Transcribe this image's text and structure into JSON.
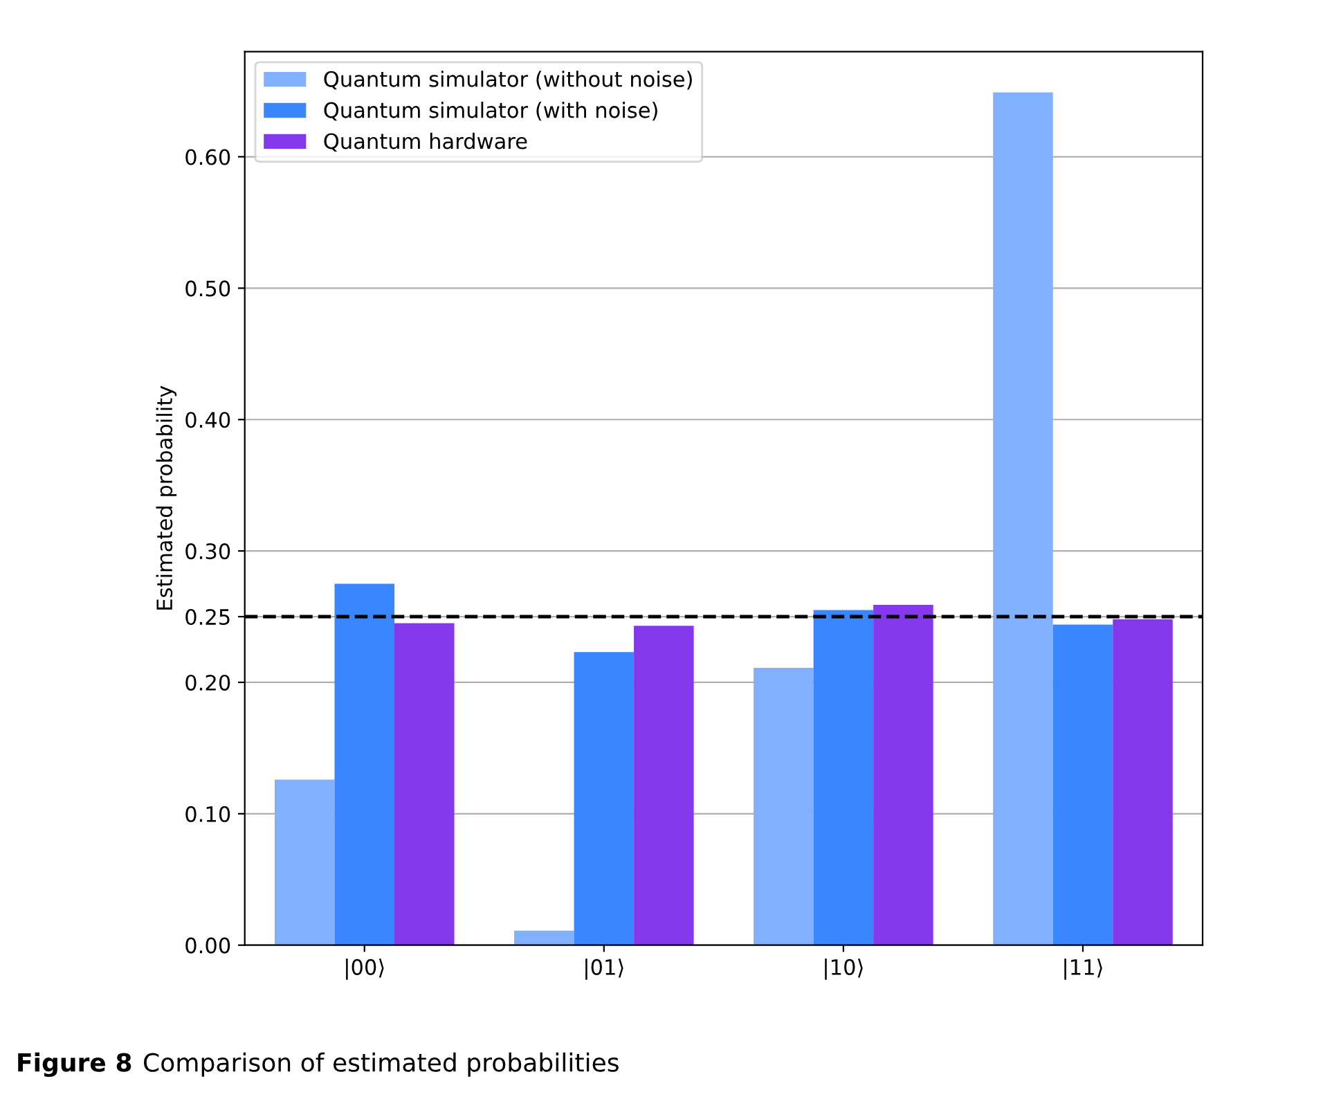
{
  "chart_data": {
    "type": "bar",
    "ylabel": "Estimated probability",
    "categories": [
      "|00⟩",
      "|01⟩",
      "|10⟩",
      "|11⟩"
    ],
    "series": [
      {
        "name": "Quantum simulator (without noise)",
        "color": "#80b0ff",
        "values": [
          0.126,
          0.011,
          0.211,
          0.649
        ]
      },
      {
        "name": "Quantum simulator (with noise)",
        "color": "#3a86ff",
        "values": [
          0.275,
          0.223,
          0.255,
          0.244
        ]
      },
      {
        "name": "Quantum hardware",
        "color": "#8338ec",
        "values": [
          0.245,
          0.243,
          0.259,
          0.248
        ]
      }
    ],
    "ylim": [
      0,
      0.68
    ],
    "yticks": [
      {
        "value": 0,
        "label": "0.00"
      },
      {
        "value": 0.1,
        "label": "0.10"
      },
      {
        "value": 0.2,
        "label": "0.20"
      },
      {
        "value": 0.25,
        "label": "0.25"
      },
      {
        "value": 0.3,
        "label": "0.30"
      },
      {
        "value": 0.4,
        "label": "0.40"
      },
      {
        "value": 0.5,
        "label": "0.50"
      },
      {
        "value": 0.6,
        "label": "0.60"
      }
    ],
    "grid": "y",
    "legend": "top left",
    "ref_lines": [
      {
        "axis": "y",
        "value": 0.25,
        "color": "#000000",
        "line_style": "dashed"
      }
    ],
    "annotations": [
      "Figure 8",
      "Comparison of estimated probabilities"
    ]
  }
}
